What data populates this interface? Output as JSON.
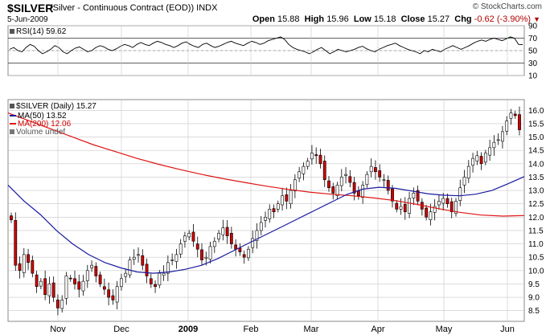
{
  "header": {
    "symbol": "$SILVER",
    "description": "(Silver - Continuous Contract (EOD))",
    "exchange": "INDX",
    "date": "5-Jun-2009",
    "copyright": "© StockCharts.com",
    "quote": {
      "open_label": "Open",
      "open": "15.88",
      "high_label": "High",
      "high": "15.96",
      "low_label": "Low",
      "low": "15.18",
      "close_label": "Close",
      "close": "15.27",
      "chg_label": "Chg",
      "chg": "-0.62 (-3.90%)"
    }
  },
  "rsi_panel": {
    "legend": "RSI(14) 59.62",
    "ticks": [
      "90",
      "70",
      "50",
      "30",
      "10"
    ]
  },
  "price_panel": {
    "legend": {
      "main": "$SILVER (Daily) 15.27",
      "ma50": "MA(50) 13.52",
      "ma200": "MA(200) 12.06",
      "volume": "Volume undef"
    }
  },
  "colors": {
    "grid": "#c8c8c8",
    "up": "#ffffff",
    "down": "#cc0000",
    "wick": "#000000",
    "ma50": "#1a1aa0",
    "ma200": "#e01414",
    "rsi_fill": "#2e8b2e"
  },
  "chart_data": [
    {
      "type": "line",
      "title": "RSI(14)",
      "ylim": [
        10,
        90
      ],
      "yticks": [
        10,
        30,
        50,
        70,
        90
      ],
      "series": [
        {
          "name": "RSI(14)",
          "values": [
            52,
            55,
            50,
            48,
            55,
            60,
            57,
            50,
            45,
            48,
            52,
            58,
            55,
            48,
            45,
            50,
            54,
            56,
            52,
            48,
            50,
            55,
            58,
            56,
            52,
            50,
            53,
            57,
            60,
            58,
            55,
            60,
            63,
            60,
            58,
            62,
            65,
            63,
            60,
            58,
            55,
            58,
            62,
            64,
            60,
            57,
            55,
            60,
            62,
            58,
            55,
            57,
            60,
            63,
            65,
            62,
            60,
            58,
            62,
            65,
            63,
            60,
            62,
            66,
            68,
            70,
            72,
            68,
            60,
            55,
            52,
            50,
            48,
            45,
            48,
            52,
            55,
            50,
            45,
            48,
            52,
            50,
            48,
            50,
            52,
            55,
            57,
            53,
            50,
            48,
            52,
            55,
            58,
            60,
            62,
            58,
            55,
            52,
            50,
            48,
            45,
            50,
            48,
            52,
            50,
            48,
            52,
            55,
            58,
            55,
            52,
            55,
            58,
            62,
            65,
            67,
            65,
            68,
            70,
            68,
            66,
            69,
            72,
            70,
            60,
            59.62
          ]
        }
      ]
    },
    {
      "type": "candlestick",
      "title": "$SILVER (Daily)",
      "ylim": [
        8.1,
        16.4
      ],
      "yticks": [
        8.5,
        9.0,
        9.5,
        10.0,
        10.5,
        11.0,
        11.5,
        12.0,
        12.5,
        13.0,
        13.5,
        14.0,
        14.5,
        15.0,
        15.5,
        16.0
      ],
      "xticks": [
        "Nov",
        "Dec",
        "2009",
        "Feb",
        "Mar",
        "Apr",
        "May",
        "Jun"
      ],
      "closes": [
        11.9,
        10.2,
        10.0,
        10.6,
        10.3,
        9.9,
        9.4,
        9.6,
        9.1,
        9.5,
        9.0,
        8.6,
        8.9,
        9.8,
        9.7,
        9.5,
        9.3,
        9.6,
        10.0,
        10.2,
        9.8,
        9.5,
        9.3,
        9.0,
        8.9,
        9.4,
        9.7,
        9.9,
        10.4,
        10.5,
        10.6,
        10.2,
        9.8,
        9.5,
        9.4,
        9.9,
        9.9,
        10.3,
        10.4,
        10.6,
        11.0,
        11.3,
        11.4,
        11.1,
        10.8,
        10.4,
        10.5,
        10.9,
        11.1,
        11.4,
        11.6,
        11.3,
        11.0,
        10.8,
        10.7,
        10.5,
        10.8,
        11.2,
        11.5,
        11.8,
        12.0,
        12.3,
        12.2,
        12.5,
        12.8,
        12.6,
        13.0,
        13.4,
        13.7,
        13.9,
        14.1,
        14.4,
        14.3,
        14.0,
        13.4,
        13.1,
        12.9,
        13.2,
        13.5,
        13.6,
        13.3,
        12.9,
        12.8,
        13.2,
        13.6,
        13.9,
        13.7,
        13.5,
        13.4,
        13.0,
        12.6,
        12.3,
        12.4,
        12.2,
        12.7,
        12.9,
        12.6,
        12.3,
        12.0,
        12.2,
        12.4,
        12.6,
        12.7,
        12.5,
        12.2,
        12.6,
        13.1,
        13.5,
        13.9,
        14.2,
        14.3,
        14.0,
        14.4,
        14.6,
        14.8,
        14.9,
        15.2,
        15.6,
        15.9,
        15.8,
        15.27
      ],
      "series": [
        {
          "name": "MA(50)",
          "values": [
            13.2,
            12.6,
            12.1,
            11.5,
            11.0,
            10.6,
            10.3,
            10.1,
            9.95,
            9.9,
            9.95,
            10.05,
            10.2,
            10.45,
            10.75,
            11.05,
            11.35,
            11.65,
            11.95,
            12.25,
            12.55,
            12.85,
            13.05,
            13.12,
            13.08,
            12.98,
            12.88,
            12.82,
            12.8,
            12.86,
            13.0,
            13.25,
            13.52
          ]
        },
        {
          "name": "MA(200)",
          "values": [
            15.9,
            15.6,
            15.3,
            15.0,
            14.7,
            14.45,
            14.2,
            13.98,
            13.78,
            13.6,
            13.44,
            13.3,
            13.16,
            13.04,
            12.94,
            12.86,
            12.8,
            12.72,
            12.62,
            12.48,
            12.32,
            12.18,
            12.08,
            12.04,
            12.06
          ]
        }
      ]
    }
  ]
}
